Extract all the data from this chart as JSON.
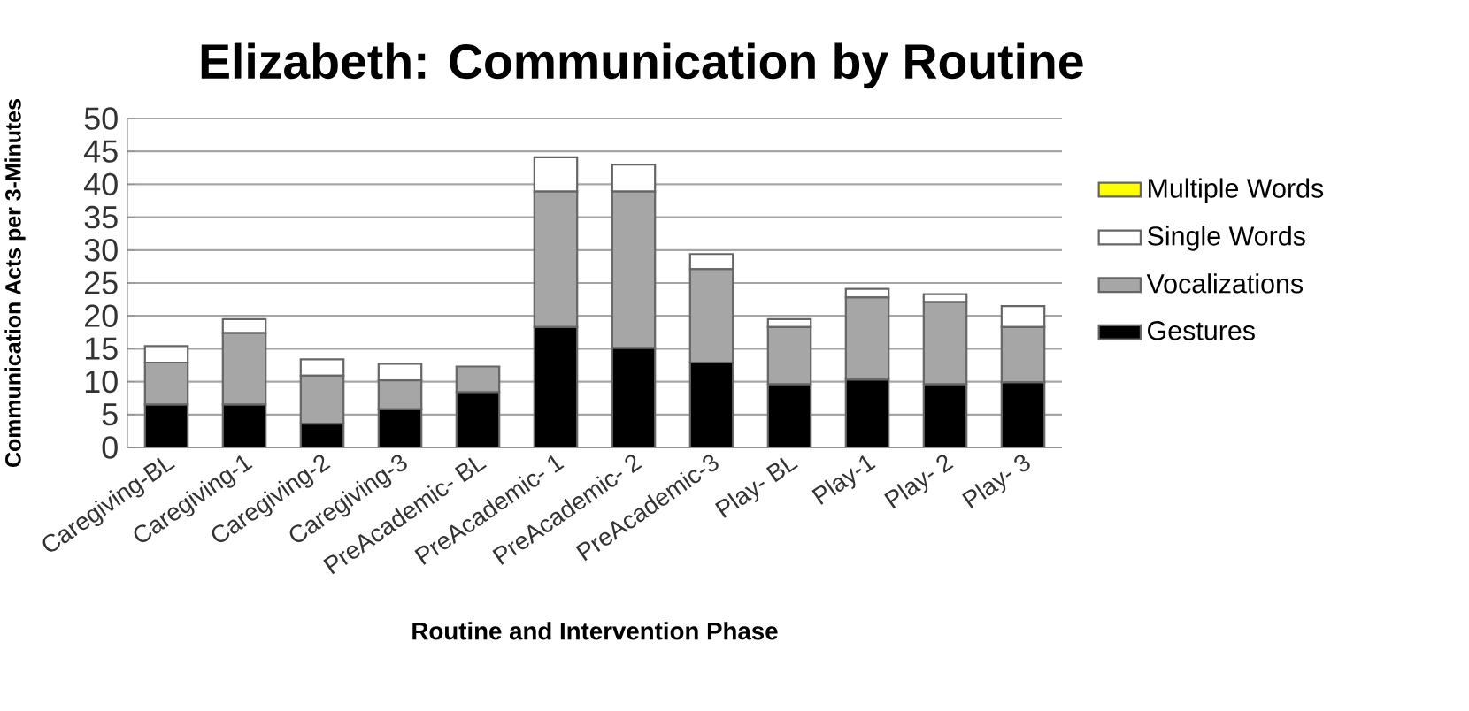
{
  "chart_data": {
    "type": "bar",
    "title": "Elizabeth: Communication by Routine",
    "xlabel": "Routine and  Intervention Phase",
    "ylabel": "Communication Acts  per 3-Minutes",
    "categories": [
      "Caregiving-BL",
      "Caregiving-1",
      "Caregiving-2",
      "Caregiving-3",
      "PreAcademic- BL",
      "PreAcademic- 1",
      "PreAcademic- 2",
      "PreAcademic-3",
      "Play- BL",
      "Play-1",
      "Play- 2",
      "Play- 3"
    ],
    "stacked": true,
    "series": [
      {
        "name": "Gestures",
        "color": "#000000",
        "values": [
          6.5,
          6.5,
          3.6,
          5.8,
          8.4,
          18.3,
          15.1,
          12.9,
          9.6,
          10.3,
          9.6,
          9.9
        ]
      },
      {
        "name": "Vocalizations",
        "color": "#a6a6a6",
        "values": [
          6.4,
          10.9,
          7.3,
          4.4,
          3.9,
          20.6,
          23.8,
          14.2,
          8.7,
          12.5,
          12.5,
          8.4
        ]
      },
      {
        "name": "Single Words",
        "color": "#ffffff",
        "values": [
          2.5,
          2.1,
          2.5,
          2.5,
          0,
          5.2,
          4.1,
          2.3,
          1.2,
          1.3,
          1.2,
          3.2
        ]
      },
      {
        "name": "Multiple Words",
        "color": "#ffff00",
        "values": [
          0,
          0,
          0,
          0,
          0,
          0,
          0,
          0,
          0,
          0,
          0,
          0
        ]
      }
    ],
    "ylim": [
      0,
      50
    ],
    "yticks": [
      0,
      5,
      10,
      15,
      20,
      25,
      30,
      35,
      40,
      45,
      50
    ],
    "grid": "y",
    "legend": "right"
  }
}
